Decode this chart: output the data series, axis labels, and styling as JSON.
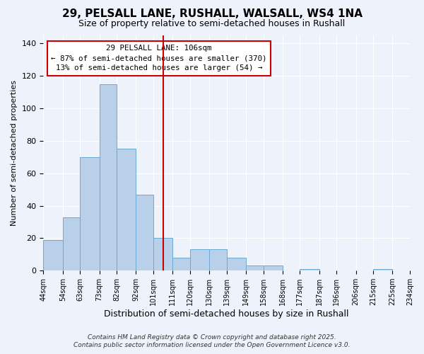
{
  "title": "29, PELSALL LANE, RUSHALL, WALSALL, WS4 1NA",
  "subtitle": "Size of property relative to semi-detached houses in Rushall",
  "xlabel": "Distribution of semi-detached houses by size in Rushall",
  "ylabel": "Number of semi-detached properties",
  "all_bar_values": [
    19,
    33,
    70,
    115,
    75,
    47,
    20,
    8,
    13,
    13,
    8,
    3,
    3,
    0,
    1,
    0,
    0,
    0,
    1,
    0
  ],
  "all_bin_edges": [
    44,
    54,
    63,
    73,
    82,
    92,
    101,
    111,
    120,
    130,
    139,
    149,
    158,
    168,
    177,
    187,
    196,
    206,
    215,
    225,
    234
  ],
  "bar_color": "#b8d0ea",
  "bar_edge_color": "#6aaad4",
  "vline_x": 106,
  "vline_color": "#cc0000",
  "annotation_title": "29 PELSALL LANE: 106sqm",
  "annotation_line1": "← 87% of semi-detached houses are smaller (370)",
  "annotation_line2": "13% of semi-detached houses are larger (54) →",
  "annotation_box_facecolor": "#ffffff",
  "annotation_box_edgecolor": "#cc0000",
  "ylim": [
    0,
    145
  ],
  "yticks": [
    0,
    20,
    40,
    60,
    80,
    100,
    120,
    140
  ],
  "background_color": "#eef2fb",
  "grid_color": "#ffffff",
  "footer1": "Contains HM Land Registry data © Crown copyright and database right 2025.",
  "footer2": "Contains public sector information licensed under the Open Government Licence v3.0.",
  "title_fontsize": 11,
  "subtitle_fontsize": 9,
  "xlabel_fontsize": 9,
  "ylabel_fontsize": 8,
  "xtick_fontsize": 7,
  "ytick_fontsize": 8,
  "footer_fontsize": 6.5
}
